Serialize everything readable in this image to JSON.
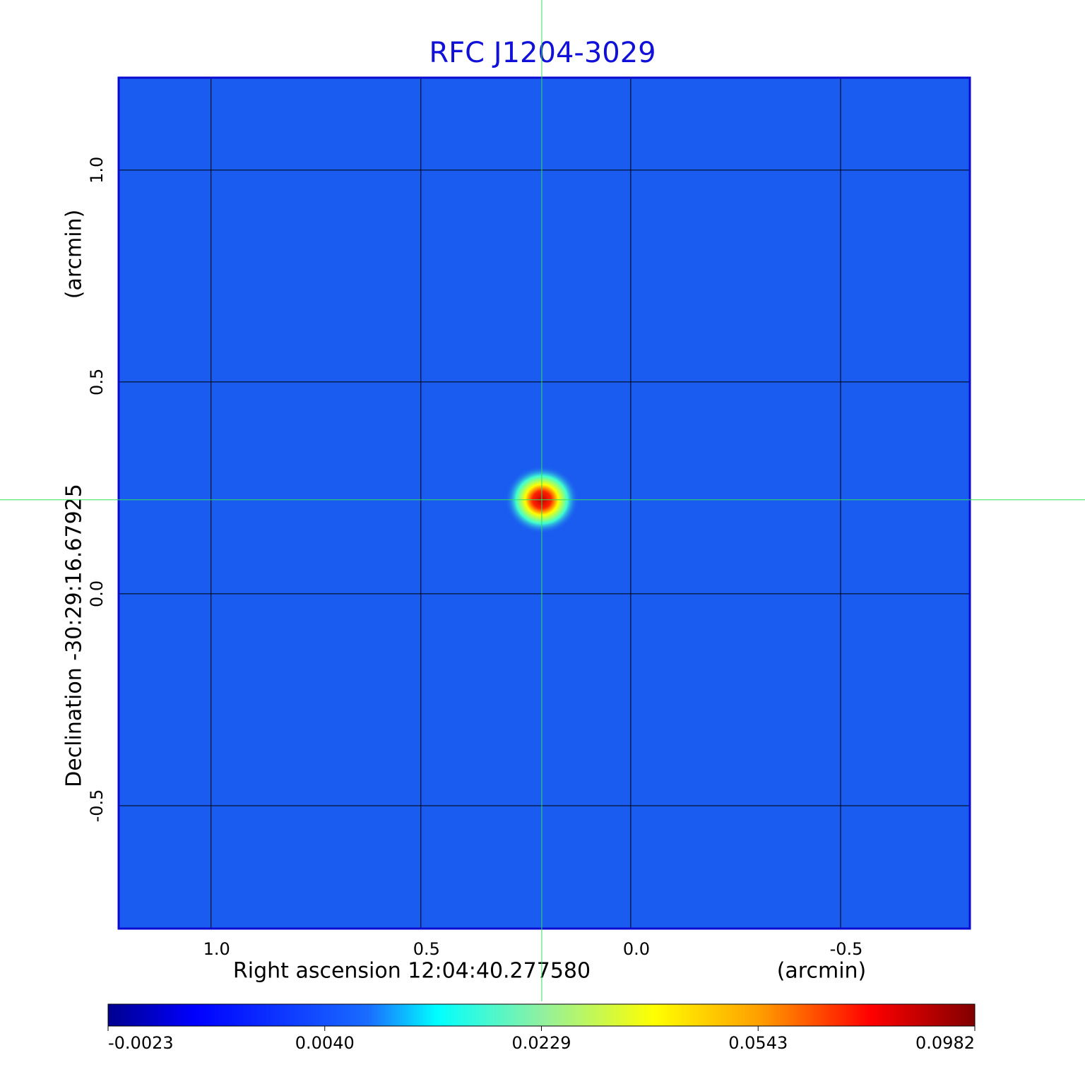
{
  "chart_data": {
    "type": "image",
    "title": "RFC J1204-3029",
    "x_label": "Right ascension  12:04:40.277580",
    "x_unit": "(arcmin)",
    "y_label": "Declination  -30:29:16.67925",
    "y_unit": "(arcmin)",
    "xlim": [
      1.22,
      -0.808
    ],
    "ylim": [
      -0.79,
      1.218
    ],
    "xticks": [
      {
        "value": 1,
        "label": "1.0"
      },
      0.5,
      {
        "value": 0,
        "label": "0.0"
      },
      -0.5
    ],
    "yticks": [
      {
        "value": 1,
        "label": "1.0"
      },
      0.5,
      {
        "value": 0,
        "label": "0.0"
      },
      -0.5
    ],
    "grid": true,
    "crosshair": {
      "x": 0.212,
      "y": 0.222
    },
    "colormap": "jet",
    "colorbar_ticks": [
      -0.0023,
      {
        "value": 0.004,
        "label": "0.0040"
      },
      0.0229,
      0.0543,
      0.0982
    ]
  }
}
